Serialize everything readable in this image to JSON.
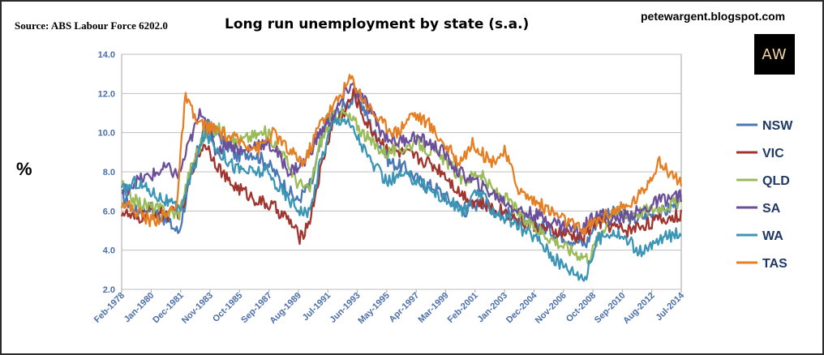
{
  "header": {
    "source": "Source: ABS Labour Force 6202.0",
    "title": "Long run unemployment by state (s.a.)",
    "blog": "petewargent.blogspot.com",
    "logo": "AW"
  },
  "chart_data": {
    "type": "line",
    "title": "Long run unemployment by state (s.a.)",
    "ylabel": "%",
    "xlabel": "",
    "ylim": [
      2.0,
      14.0
    ],
    "yticks": [
      "2.0",
      "4.0",
      "6.0",
      "8.0",
      "10.0",
      "12.0",
      "14.0"
    ],
    "xlim": [
      1978.08,
      2014.5
    ],
    "xticks": [
      {
        "label": "Feb-1978",
        "x": 1978.08
      },
      {
        "label": "Jan-1980",
        "x": 1980.0
      },
      {
        "label": "Dec-1981",
        "x": 1981.92
      },
      {
        "label": "Nov-1983",
        "x": 1983.83
      },
      {
        "label": "Oct-1985",
        "x": 1985.75
      },
      {
        "label": "Sep-1987",
        "x": 1987.67
      },
      {
        "label": "Aug-1989",
        "x": 1989.58
      },
      {
        "label": "Jul-1991",
        "x": 1991.5
      },
      {
        "label": "Jun-1993",
        "x": 1993.42
      },
      {
        "label": "May-1995",
        "x": 1995.33
      },
      {
        "label": "Apr-1997",
        "x": 1997.25
      },
      {
        "label": "Mar-1999",
        "x": 1999.17
      },
      {
        "label": "Feb-2001",
        "x": 2001.08
      },
      {
        "label": "Jan-2003",
        "x": 2003.0
      },
      {
        "label": "Dec-2004",
        "x": 2004.92
      },
      {
        "label": "Nov-2006",
        "x": 2006.83
      },
      {
        "label": "Oct-2008",
        "x": 2008.75
      },
      {
        "label": "Sep-2010",
        "x": 2010.67
      },
      {
        "label": "Aug-2012",
        "x": 2012.58
      },
      {
        "label": "Jul-2014",
        "x": 2014.5
      }
    ],
    "grid": true,
    "legend": "right",
    "series": [
      {
        "name": "NSW",
        "color": "#4a78b5",
        "points": [
          [
            1978.08,
            6.8
          ],
          [
            1979,
            6.0
          ],
          [
            1980,
            6.2
          ],
          [
            1981,
            5.5
          ],
          [
            1981.8,
            4.9
          ],
          [
            1982.5,
            7.5
          ],
          [
            1983.5,
            10.5
          ],
          [
            1984.5,
            9.8
          ],
          [
            1985.5,
            8.8
          ],
          [
            1986.5,
            9.0
          ],
          [
            1987.5,
            8.5
          ],
          [
            1988.5,
            7.5
          ],
          [
            1989.5,
            6.5
          ],
          [
            1990.5,
            7.5
          ],
          [
            1991.3,
            10.5
          ],
          [
            1992,
            11.0
          ],
          [
            1992.8,
            11.5
          ],
          [
            1993.5,
            11.8
          ],
          [
            1994.5,
            10.0
          ],
          [
            1995.5,
            8.5
          ],
          [
            1996.5,
            8.2
          ],
          [
            1997.5,
            7.5
          ],
          [
            1998.5,
            7.2
          ],
          [
            1999.5,
            6.5
          ],
          [
            2000.5,
            6.0
          ],
          [
            2001.5,
            6.5
          ],
          [
            2002.5,
            6.0
          ],
          [
            2003.5,
            5.8
          ],
          [
            2004.5,
            5.5
          ],
          [
            2005.5,
            5.2
          ],
          [
            2006.5,
            4.8
          ],
          [
            2007.5,
            4.5
          ],
          [
            2008.3,
            4.3
          ],
          [
            2009,
            5.5
          ],
          [
            2009.8,
            6.0
          ],
          [
            2010.5,
            5.8
          ],
          [
            2011.5,
            5.6
          ],
          [
            2012.5,
            5.8
          ],
          [
            2013.5,
            6.0
          ],
          [
            2014.5,
            6.6
          ]
        ]
      },
      {
        "name": "VIC",
        "color": "#a0342e",
        "points": [
          [
            1978.08,
            6.0
          ],
          [
            1979,
            5.5
          ],
          [
            1980,
            6.0
          ],
          [
            1981,
            5.8
          ],
          [
            1982,
            6.0
          ],
          [
            1982.8,
            8.5
          ],
          [
            1983.5,
            9.5
          ],
          [
            1984.2,
            8.5
          ],
          [
            1985,
            7.5
          ],
          [
            1986,
            7.0
          ],
          [
            1987,
            6.5
          ],
          [
            1988,
            6.2
          ],
          [
            1989,
            5.5
          ],
          [
            1989.7,
            4.6
          ],
          [
            1990.3,
            5.5
          ],
          [
            1991,
            8.0
          ],
          [
            1991.8,
            10.5
          ],
          [
            1992.5,
            11.0
          ],
          [
            1993.2,
            12.0
          ],
          [
            1994,
            10.5
          ],
          [
            1995,
            9.5
          ],
          [
            1996,
            9.0
          ],
          [
            1997,
            8.8
          ],
          [
            1998,
            8.5
          ],
          [
            1999,
            8.0
          ],
          [
            2000,
            7.0
          ],
          [
            2001,
            6.5
          ],
          [
            2002,
            6.2
          ],
          [
            2003,
            6.0
          ],
          [
            2004,
            5.5
          ],
          [
            2005,
            5.2
          ],
          [
            2006,
            5.0
          ],
          [
            2007,
            4.8
          ],
          [
            2008,
            4.6
          ],
          [
            2009,
            5.5
          ],
          [
            2010,
            5.2
          ],
          [
            2011,
            5.0
          ],
          [
            2012,
            5.3
          ],
          [
            2013,
            5.5
          ],
          [
            2014.5,
            5.8
          ]
        ]
      },
      {
        "name": "QLD",
        "color": "#9bbb59",
        "points": [
          [
            1978.08,
            7.3
          ],
          [
            1979,
            6.5
          ],
          [
            1980,
            6.2
          ],
          [
            1981,
            6.0
          ],
          [
            1981.8,
            5.8
          ],
          [
            1982.5,
            8.0
          ],
          [
            1983.5,
            10.0
          ],
          [
            1984.5,
            10.2
          ],
          [
            1985.5,
            9.5
          ],
          [
            1986.5,
            9.8
          ],
          [
            1987.5,
            10.0
          ],
          [
            1988.5,
            9.0
          ],
          [
            1989.5,
            7.5
          ],
          [
            1990.3,
            7.0
          ],
          [
            1991,
            9.5
          ],
          [
            1991.8,
            10.8
          ],
          [
            1992.5,
            11.0
          ],
          [
            1993.3,
            10.5
          ],
          [
            1994.3,
            9.5
          ],
          [
            1995.3,
            9.0
          ],
          [
            1996.3,
            9.2
          ],
          [
            1997.3,
            9.5
          ],
          [
            1998.3,
            9.0
          ],
          [
            1999.3,
            8.5
          ],
          [
            2000.3,
            7.5
          ],
          [
            2001.3,
            8.0
          ],
          [
            2002.3,
            7.0
          ],
          [
            2003.3,
            6.5
          ],
          [
            2004.3,
            5.5
          ],
          [
            2005.3,
            5.0
          ],
          [
            2006.3,
            4.5
          ],
          [
            2007.3,
            4.0
          ],
          [
            2008.5,
            3.6
          ],
          [
            2009.3,
            5.0
          ],
          [
            2010.2,
            6.0
          ],
          [
            2011,
            5.8
          ],
          [
            2012,
            6.0
          ],
          [
            2013,
            6.2
          ],
          [
            2014.5,
            6.5
          ]
        ]
      },
      {
        "name": "SA",
        "color": "#6c4f9a",
        "points": [
          [
            1978.08,
            6.9
          ],
          [
            1979,
            7.5
          ],
          [
            1980,
            7.8
          ],
          [
            1981,
            8.2
          ],
          [
            1981.8,
            7.8
          ],
          [
            1982.5,
            9.5
          ],
          [
            1983.3,
            11.2
          ],
          [
            1984.2,
            9.0
          ],
          [
            1985,
            9.5
          ],
          [
            1986,
            9.0
          ],
          [
            1987,
            9.5
          ],
          [
            1988,
            9.2
          ],
          [
            1989,
            8.0
          ],
          [
            1990,
            8.5
          ],
          [
            1991,
            10.0
          ],
          [
            1992,
            11.0
          ],
          [
            1993,
            12.5
          ],
          [
            1994,
            11.5
          ],
          [
            1995,
            10.0
          ],
          [
            1996,
            9.5
          ],
          [
            1997,
            9.8
          ],
          [
            1998,
            9.5
          ],
          [
            1999,
            9.0
          ],
          [
            2000,
            8.0
          ],
          [
            2001,
            7.5
          ],
          [
            2002,
            7.0
          ],
          [
            2003,
            6.5
          ],
          [
            2004,
            6.0
          ],
          [
            2005,
            5.8
          ],
          [
            2006,
            5.5
          ],
          [
            2007,
            5.2
          ],
          [
            2008,
            5.0
          ],
          [
            2009,
            6.0
          ],
          [
            2010,
            5.5
          ],
          [
            2011,
            5.8
          ],
          [
            2012,
            6.0
          ],
          [
            2013,
            6.5
          ],
          [
            2014.5,
            6.8
          ]
        ]
      },
      {
        "name": "WA",
        "color": "#3b95b5",
        "points": [
          [
            1978.08,
            7.0
          ],
          [
            1979,
            7.5
          ],
          [
            1980,
            7.0
          ],
          [
            1981,
            6.5
          ],
          [
            1981.8,
            6.0
          ],
          [
            1982.5,
            7.5
          ],
          [
            1983.5,
            10.0
          ],
          [
            1984.5,
            9.0
          ],
          [
            1985.5,
            8.2
          ],
          [
            1986.5,
            8.0
          ],
          [
            1987.5,
            8.0
          ],
          [
            1988.5,
            7.0
          ],
          [
            1989.5,
            6.2
          ],
          [
            1990.3,
            5.8
          ],
          [
            1991,
            8.5
          ],
          [
            1991.8,
            10.5
          ],
          [
            1992.5,
            10.8
          ],
          [
            1993.3,
            10.0
          ],
          [
            1994.3,
            8.5
          ],
          [
            1995.3,
            7.5
          ],
          [
            1996.3,
            7.8
          ],
          [
            1997.3,
            7.6
          ],
          [
            1998.3,
            7.0
          ],
          [
            1999.3,
            6.5
          ],
          [
            2000.3,
            6.0
          ],
          [
            2001.3,
            7.0
          ],
          [
            2002.3,
            6.0
          ],
          [
            2003.3,
            5.5
          ],
          [
            2004.3,
            5.0
          ],
          [
            2005.3,
            4.5
          ],
          [
            2006.3,
            3.5
          ],
          [
            2007.3,
            3.0
          ],
          [
            2008.3,
            2.6
          ],
          [
            2009,
            4.5
          ],
          [
            2010,
            5.0
          ],
          [
            2011,
            4.5
          ],
          [
            2012,
            3.8
          ],
          [
            2013,
            4.5
          ],
          [
            2014.5,
            5.0
          ]
        ]
      },
      {
        "name": "TAS",
        "color": "#e67e22",
        "points": [
          [
            1978.08,
            6.5
          ],
          [
            1979,
            6.0
          ],
          [
            1980,
            5.5
          ],
          [
            1981,
            5.8
          ],
          [
            1981.7,
            6.5
          ],
          [
            1982.2,
            11.8
          ],
          [
            1983,
            10.5
          ],
          [
            1984,
            10.2
          ],
          [
            1985,
            9.8
          ],
          [
            1986,
            9.5
          ],
          [
            1987,
            9.2
          ],
          [
            1988,
            10.0
          ],
          [
            1989,
            9.0
          ],
          [
            1990,
            8.5
          ],
          [
            1991,
            10.5
          ],
          [
            1992,
            11.5
          ],
          [
            1993,
            12.8
          ],
          [
            1994,
            11.5
          ],
          [
            1995,
            10.5
          ],
          [
            1996,
            10.0
          ],
          [
            1997,
            11.0
          ],
          [
            1998,
            10.5
          ],
          [
            1999,
            9.5
          ],
          [
            2000,
            8.5
          ],
          [
            2001,
            9.5
          ],
          [
            2002,
            8.5
          ],
          [
            2003,
            9.0
          ],
          [
            2004,
            7.0
          ],
          [
            2005,
            6.5
          ],
          [
            2006,
            6.0
          ],
          [
            2007,
            5.5
          ],
          [
            2008,
            5.0
          ],
          [
            2009,
            5.5
          ],
          [
            2010,
            6.0
          ],
          [
            2011,
            6.2
          ],
          [
            2012,
            7.0
          ],
          [
            2013,
            8.5
          ],
          [
            2014.5,
            7.5
          ]
        ]
      }
    ]
  }
}
